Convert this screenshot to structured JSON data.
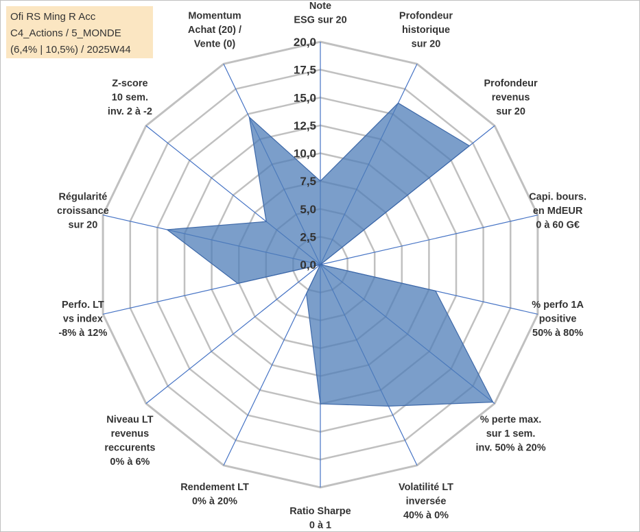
{
  "info_box": {
    "line1": "Ofi RS Ming R Acc",
    "line2": "C4_Actions / 5_MONDE",
    "line3": "(6,4% | 10,5%) / 2025W44"
  },
  "chart_data": {
    "type": "radar",
    "axis_max": 20,
    "ticks": [
      "0,0",
      "2,5",
      "5,0",
      "7,5",
      "10,0",
      "12,5",
      "15,0",
      "17,5",
      "20,0"
    ],
    "categories": [
      [
        "Note",
        "ESG sur 20"
      ],
      [
        "Profondeur",
        "historique",
        "sur 20"
      ],
      [
        "Profondeur",
        "revenus",
        "sur 20"
      ],
      [
        "Capi. bours.",
        "en MdEUR",
        "0 à 60 G€"
      ],
      [
        "% perfo 1A",
        "positive",
        "50% à 80%"
      ],
      [
        "% perte max.",
        "sur 1 sem.",
        "inv. 50% à 20%"
      ],
      [
        "Volatilité LT",
        "inversée",
        "40% à 0%"
      ],
      [
        "Ratio Sharpe",
        "0 à 1"
      ],
      [
        "Rendement LT",
        "0% à 20%"
      ],
      [
        "Niveau LT",
        "revenus",
        "reccurents",
        "0% à 6%"
      ],
      [
        "Perfo. LT",
        "vs index",
        "-8% à 12%"
      ],
      [
        "Régularité",
        "croissance",
        "sur 20"
      ],
      [
        "Z-score",
        "10 sem.",
        "inv. 2 à -2"
      ],
      [
        "Momentum",
        "Achat (20) /",
        "Vente (0)"
      ]
    ],
    "values": [
      7.5,
      16.1,
      17.1,
      0,
      10.6,
      19.8,
      14.1,
      12.5,
      2.9,
      0,
      7.6,
      14.1,
      6.2,
      14.7
    ],
    "colors": {
      "fill": "#4f7db8",
      "fill_opacity": 0.75,
      "stroke": "#3d68a8",
      "grid": "#c0c0c0",
      "spoke": "#4472c4",
      "text": "#333333"
    }
  }
}
